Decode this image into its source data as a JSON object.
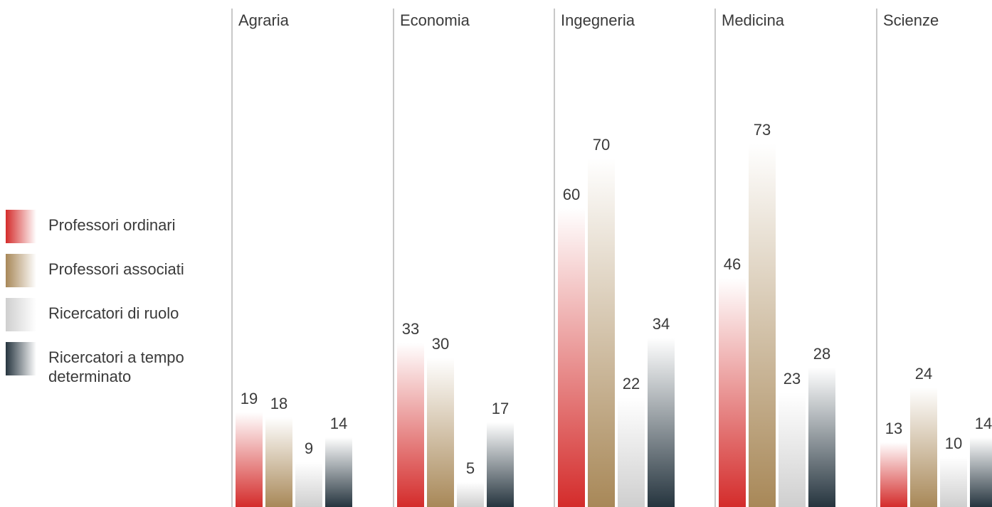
{
  "chart_data": {
    "type": "bar",
    "categories": [
      "Agraria",
      "Economia",
      "Ingegneria",
      "Medicina",
      "Scienze"
    ],
    "series": [
      {
        "name": "Professori ordinari",
        "values": [
          19,
          33,
          60,
          46,
          13
        ],
        "color": "#d42c2b"
      },
      {
        "name": "Professori associati",
        "values": [
          18,
          30,
          70,
          73,
          24
        ],
        "color": "#a88858"
      },
      {
        "name": "Ricercatori di ruolo",
        "values": [
          9,
          5,
          22,
          23,
          10
        ],
        "color": "#cfcfcf"
      },
      {
        "name": "Ricercatori a tempo determinato",
        "values": [
          14,
          17,
          34,
          28,
          14
        ],
        "color": "#26353f"
      }
    ],
    "legend_position": "left",
    "grid": false,
    "title": "",
    "xlabel": "",
    "ylabel": ""
  }
}
